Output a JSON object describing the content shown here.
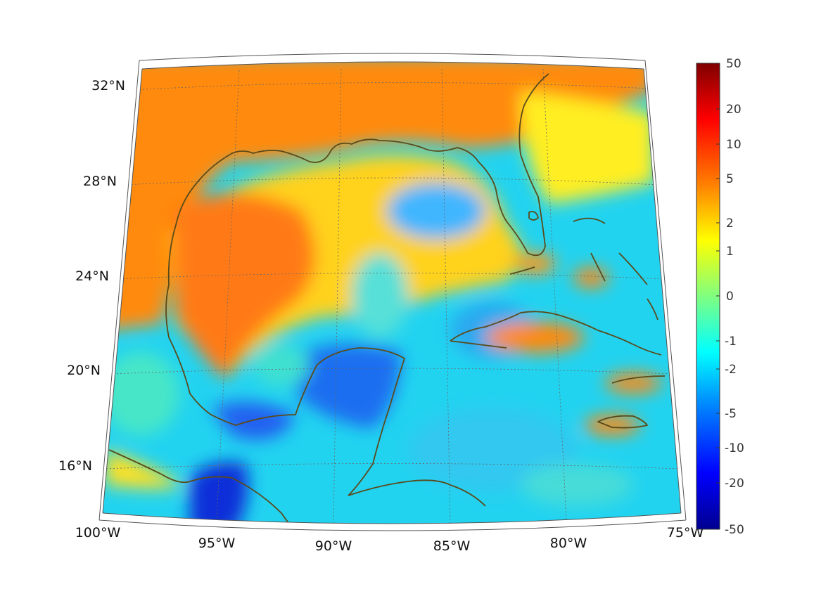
{
  "map": {
    "lat_labels": [
      "32°N",
      "28°N",
      "24°N",
      "20°N",
      "16°N"
    ],
    "lon_labels": [
      "100°W",
      "95°W",
      "90°W",
      "85°W",
      "80°W",
      "75°W"
    ],
    "lat_values": [
      32,
      28,
      24,
      20,
      16
    ],
    "lon_values": [
      -100,
      -95,
      -90,
      -85,
      -80,
      -75
    ],
    "extent": {
      "lon": [
        -100,
        -75
      ],
      "lat": [
        14,
        33
      ]
    },
    "coastline_color": "#5a4a1a",
    "grid": "dotted"
  },
  "colorbar": {
    "labels": [
      "50",
      "20",
      "10",
      "5",
      "2",
      "1",
      "0",
      "-1",
      "-2",
      "-5",
      "-10",
      "-20",
      "-50"
    ],
    "colormap": "jet"
  }
}
